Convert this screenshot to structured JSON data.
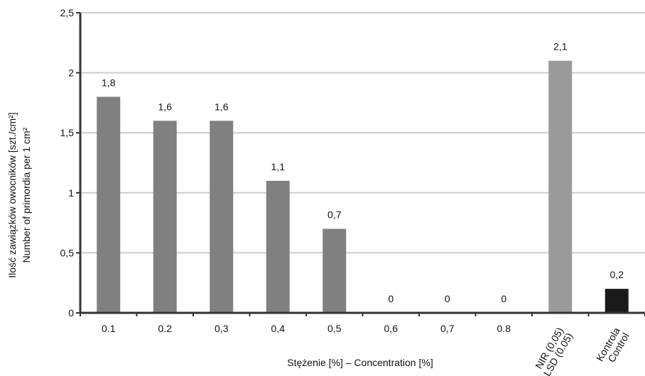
{
  "chart_data": {
    "type": "bar",
    "categories": [
      "0.1",
      "0.2",
      "0,3",
      "0,4",
      "0,5",
      "0,6",
      "0,7",
      "0.8",
      "NIR (0,05)\nLSD (0.05)",
      "Kontrola\nControl"
    ],
    "values": [
      1.8,
      1.6,
      1.6,
      1.1,
      0.7,
      0,
      0,
      0,
      2.1,
      0.2
    ],
    "value_labels": [
      "1,8",
      "1,6",
      "1,6",
      "1,1",
      "0,7",
      "0",
      "0",
      "0",
      "2,1",
      "0,2"
    ],
    "bar_colors": [
      "#808080",
      "#808080",
      "#808080",
      "#808080",
      "#808080",
      "#808080",
      "#808080",
      "#808080",
      "#9a9a9a",
      "#1a1a1a"
    ],
    "ylim": [
      0,
      2.5
    ],
    "yticks": [
      0,
      0.5,
      1,
      1.5,
      2,
      2.5
    ],
    "ytick_labels": [
      "0",
      "0,5",
      "1",
      "1,5",
      "2",
      "2,5"
    ],
    "xlabel": "Stężenie [%] – Concentration [%]",
    "ylabel_line1": "Ilość zawiązków owocników [szt./cm²]",
    "ylabel_line2": "Number of primordia per 1 cm²",
    "grid": true,
    "gridline_color": "#cccccc",
    "axis_color": "#333333"
  }
}
